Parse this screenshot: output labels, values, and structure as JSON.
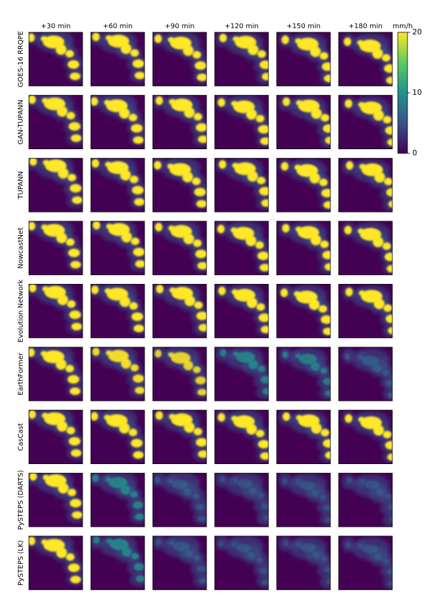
{
  "columns": [
    "+30 min",
    "+60 min",
    "+90 min",
    "+120 min",
    "+150 min",
    "+180 min"
  ],
  "rows": [
    "GOES-16 RRQPE",
    "GAN-TUPANN",
    "TUPANN",
    "NowcastNet",
    "Evolution Network",
    "EarthFormer",
    "CasCast",
    "PySTEPS (DARTS)",
    "PySTEPS (LK)"
  ],
  "colorbar": {
    "label": "mm/h",
    "lim": [
      0,
      20
    ],
    "ticks": [
      0,
      10,
      20
    ]
  }
}
